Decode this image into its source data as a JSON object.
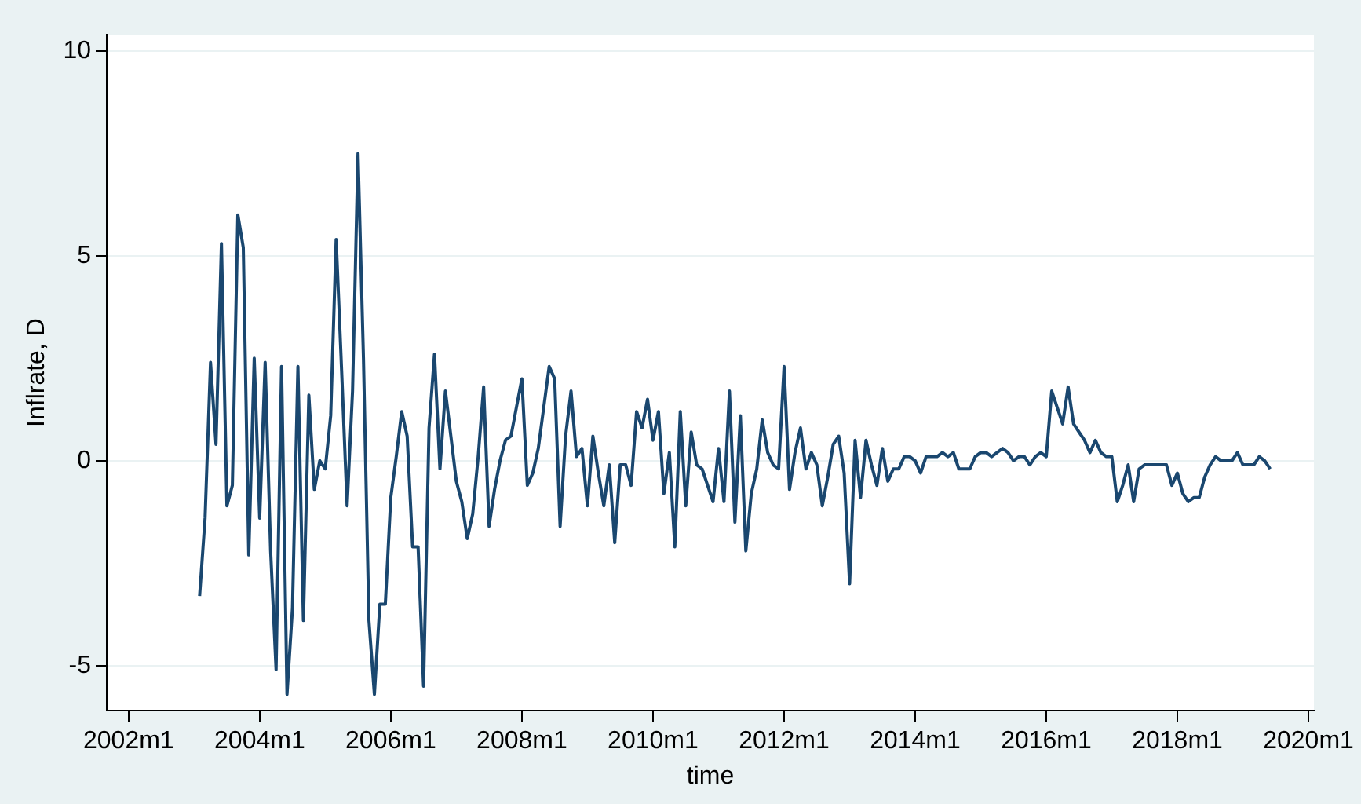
{
  "chart_data": {
    "type": "line",
    "xlabel": "time",
    "ylabel": "Inflrate, D",
    "x": [
      "2003-02",
      "2003-03",
      "2003-04",
      "2003-05",
      "2003-06",
      "2003-07",
      "2003-08",
      "2003-09",
      "2003-10",
      "2003-11",
      "2003-12",
      "2004-01",
      "2004-02",
      "2004-03",
      "2004-04",
      "2004-05",
      "2004-06",
      "2004-07",
      "2004-08",
      "2004-09",
      "2004-10",
      "2004-11",
      "2004-12",
      "2005-01",
      "2005-02",
      "2005-03",
      "2005-04",
      "2005-05",
      "2005-06",
      "2005-07",
      "2005-08",
      "2005-09",
      "2005-10",
      "2005-11",
      "2005-12",
      "2006-01",
      "2006-02",
      "2006-03",
      "2006-04",
      "2006-05",
      "2006-06",
      "2006-07",
      "2006-08",
      "2006-09",
      "2006-10",
      "2006-11",
      "2006-12",
      "2007-01",
      "2007-02",
      "2007-03",
      "2007-04",
      "2007-05",
      "2007-06",
      "2007-07",
      "2007-08",
      "2007-09",
      "2007-10",
      "2007-11",
      "2007-12",
      "2008-01",
      "2008-02",
      "2008-03",
      "2008-04",
      "2008-05",
      "2008-06",
      "2008-07",
      "2008-08",
      "2008-09",
      "2008-10",
      "2008-11",
      "2008-12",
      "2009-01",
      "2009-02",
      "2009-03",
      "2009-04",
      "2009-05",
      "2009-06",
      "2009-07",
      "2009-08",
      "2009-09",
      "2009-10",
      "2009-11",
      "2009-12",
      "2010-01",
      "2010-02",
      "2010-03",
      "2010-04",
      "2010-05",
      "2010-06",
      "2010-07",
      "2010-08",
      "2010-09",
      "2010-10",
      "2010-11",
      "2010-12",
      "2011-01",
      "2011-02",
      "2011-03",
      "2011-04",
      "2011-05",
      "2011-06",
      "2011-07",
      "2011-08",
      "2011-09",
      "2011-10",
      "2011-11",
      "2011-12",
      "2012-01",
      "2012-02",
      "2012-03",
      "2012-04",
      "2012-05",
      "2012-06",
      "2012-07",
      "2012-08",
      "2012-09",
      "2012-10",
      "2012-11",
      "2012-12",
      "2013-01",
      "2013-02",
      "2013-03",
      "2013-04",
      "2013-05",
      "2013-06",
      "2013-07",
      "2013-08",
      "2013-09",
      "2013-10",
      "2013-11",
      "2013-12",
      "2014-01",
      "2014-02",
      "2014-03",
      "2014-04",
      "2014-05",
      "2014-06",
      "2014-07",
      "2014-08",
      "2014-09",
      "2014-10",
      "2014-11",
      "2014-12",
      "2015-01",
      "2015-02",
      "2015-03",
      "2015-04",
      "2015-05",
      "2015-06",
      "2015-07",
      "2015-08",
      "2015-09",
      "2015-10",
      "2015-11",
      "2015-12",
      "2016-01",
      "2016-02",
      "2016-03",
      "2016-04",
      "2016-05",
      "2016-06",
      "2016-07",
      "2016-08",
      "2016-09",
      "2016-10",
      "2016-11",
      "2016-12",
      "2017-01",
      "2017-02",
      "2017-03",
      "2017-04",
      "2017-05",
      "2017-06",
      "2017-07",
      "2017-08",
      "2017-09",
      "2017-10",
      "2017-11",
      "2017-12",
      "2018-01",
      "2018-02",
      "2018-03",
      "2018-04",
      "2018-05",
      "2018-06",
      "2018-07",
      "2018-08",
      "2018-09",
      "2018-10",
      "2018-11",
      "2018-12",
      "2019-01",
      "2019-02",
      "2019-03",
      "2019-04",
      "2019-05",
      "2019-06"
    ],
    "series": [
      {
        "color": "#1a476f",
        "values": [
          -3.3,
          -1.4,
          2.4,
          0.4,
          5.3,
          -1.1,
          -0.6,
          6.0,
          5.2,
          -2.3,
          2.5,
          -1.4,
          2.4,
          -2.2,
          -5.1,
          2.3,
          -5.7,
          -3.6,
          2.3,
          -3.9,
          1.6,
          -0.7,
          0.0,
          -0.2,
          1.1,
          5.4,
          2.2,
          -1.1,
          1.7,
          7.5,
          2.5,
          -3.9,
          -5.7,
          -3.5,
          -3.5,
          -0.9,
          0.1,
          1.2,
          0.6,
          -2.1,
          -2.1,
          -5.5,
          0.8,
          2.6,
          -0.2,
          1.7,
          0.6,
          -0.5,
          -1.0,
          -1.9,
          -1.3,
          0.1,
          1.8,
          -1.6,
          -0.7,
          0.0,
          0.5,
          0.6,
          1.3,
          2.0,
          -0.6,
          -0.3,
          0.3,
          1.3,
          2.3,
          2.0,
          -1.6,
          0.6,
          1.7,
          0.1,
          0.3,
          -1.1,
          0.6,
          -0.3,
          -1.1,
          -0.1,
          -2.0,
          -0.1,
          -0.1,
          -0.6,
          1.2,
          0.8,
          1.5,
          0.5,
          1.2,
          -0.8,
          0.2,
          -2.1,
          1.2,
          -1.1,
          0.7,
          -0.1,
          -0.2,
          -0.6,
          -1.0,
          0.3,
          -1.0,
          1.7,
          -1.5,
          1.1,
          -2.2,
          -0.8,
          -0.2,
          1.0,
          0.2,
          -0.1,
          -0.2,
          2.3,
          -0.7,
          0.2,
          0.8,
          -0.2,
          0.2,
          -0.1,
          -1.1,
          -0.4,
          0.4,
          0.6,
          -0.3,
          -3.0,
          0.5,
          -0.9,
          0.5,
          -0.1,
          -0.6,
          0.3,
          -0.5,
          -0.2,
          -0.2,
          0.1,
          0.1,
          0.0,
          -0.3,
          0.1,
          0.1,
          0.1,
          0.2,
          0.1,
          0.2,
          -0.2,
          -0.2,
          -0.2,
          0.1,
          0.2,
          0.2,
          0.1,
          0.2,
          0.3,
          0.2,
          0.0,
          0.1,
          0.1,
          -0.1,
          0.1,
          0.2,
          0.1,
          1.7,
          1.3,
          0.9,
          1.8,
          0.9,
          0.7,
          0.5,
          0.2,
          0.5,
          0.2,
          0.1,
          0.1,
          -1.0,
          -0.6,
          -0.1,
          -1.0,
          -0.2,
          -0.1,
          -0.1,
          -0.1,
          -0.1,
          -0.1,
          -0.6,
          -0.3,
          -0.8,
          -1.0,
          -0.9,
          -0.9,
          -0.4,
          -0.1,
          0.1,
          0.0,
          0.0,
          0.0,
          0.2,
          -0.1,
          -0.1,
          -0.1,
          0.1,
          0.0,
          -0.2
        ]
      }
    ],
    "xlim": [
      "2001-09",
      "2020-02"
    ],
    "xticks": [
      {
        "value": "2002-01",
        "label": "2002m1"
      },
      {
        "value": "2004-01",
        "label": "2004m1"
      },
      {
        "value": "2006-01",
        "label": "2006m1"
      },
      {
        "value": "2008-01",
        "label": "2008m1"
      },
      {
        "value": "2010-01",
        "label": "2010m1"
      },
      {
        "value": "2012-01",
        "label": "2012m1"
      },
      {
        "value": "2014-01",
        "label": "2014m1"
      },
      {
        "value": "2016-01",
        "label": "2016m1"
      },
      {
        "value": "2018-01",
        "label": "2018m1"
      },
      {
        "value": "2020-01",
        "label": "2020m1"
      }
    ],
    "ylim": [
      -6.1,
      10.4
    ],
    "yticks": [
      -5,
      0,
      5,
      10
    ],
    "grid": "y",
    "legend": false,
    "marker": "none",
    "line_style": "solid"
  }
}
